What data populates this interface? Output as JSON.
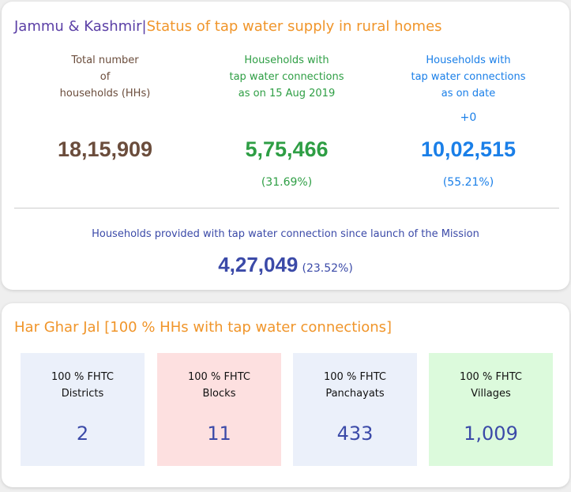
{
  "status_card": {
    "state": "Jammu & Kashmir",
    "separator": "|",
    "title": "Status of tap water supply in rural homes",
    "columns": [
      {
        "label_lines": [
          "Total number",
          "of",
          "households (HHs)"
        ],
        "increment": "",
        "value": "18,15,909",
        "percent": "",
        "color": "#6b4d3c"
      },
      {
        "label_lines": [
          "Households with",
          "tap water connections",
          "as on 15 Aug 2019"
        ],
        "increment": "",
        "value": "5,75,466",
        "percent": "(31.69%)",
        "color": "#2e9e44"
      },
      {
        "label_lines": [
          "Households with",
          "tap water connections",
          "as on date"
        ],
        "increment": "+0",
        "value": "10,02,515",
        "percent": "(55.21%)",
        "color": "#1a7fe8"
      }
    ],
    "mission": {
      "label": "Households provided with tap water connection since launch of the Mission",
      "value": "4,27,049",
      "percent": "(23.52%)",
      "color": "#3b4aa8"
    }
  },
  "har_ghar_jal": {
    "title": "Har Ghar Jal [100 % HHs with tap water connections]",
    "boxes": [
      {
        "line1": "100 % FHTC",
        "line2": "Districts",
        "value": "2",
        "bg": "#ebf0fa"
      },
      {
        "line1": "100 % FHTC",
        "line2": "Blocks",
        "value": "11",
        "bg": "#fde0e0"
      },
      {
        "line1": "100 % FHTC",
        "line2": "Panchayats",
        "value": "433",
        "bg": "#ebf0fa"
      },
      {
        "line1": "100 % FHTC",
        "line2": "Villages",
        "value": "1,009",
        "bg": "#dcfadc"
      }
    ]
  }
}
